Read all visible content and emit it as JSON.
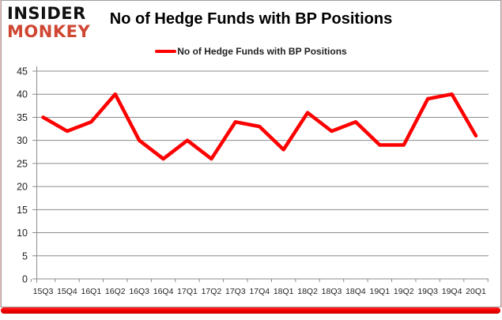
{
  "logo": {
    "line1": "INSIDER",
    "line2": "MONKEY"
  },
  "header": {
    "title": "No of Hedge Funds with BP Positions"
  },
  "legend": {
    "label": "No of Hedge Funds with BP Positions"
  },
  "colors": {
    "series_line": "#fe0000",
    "grid": "#8c8c8c",
    "axis_text": "#1f1f1f",
    "logo_black": "#111111",
    "logo_red": "#cf4632",
    "bottom_bar": "#f40000"
  },
  "chart_data": {
    "type": "line",
    "title": "No of Hedge Funds with BP Positions",
    "categories": [
      "15Q3",
      "15Q4",
      "16Q1",
      "16Q2",
      "16Q3",
      "16Q4",
      "17Q1",
      "17Q2",
      "17Q3",
      "17Q4",
      "18Q1",
      "18Q2",
      "18Q3",
      "18Q4",
      "19Q1",
      "19Q2",
      "19Q3",
      "19Q4",
      "20Q1"
    ],
    "series": [
      {
        "name": "No of Hedge Funds with BP Positions",
        "color": "#fe0000",
        "values": [
          35,
          32,
          34,
          40,
          30,
          26,
          30,
          26,
          34,
          33,
          28,
          36,
          32,
          34,
          29,
          29,
          39,
          40,
          31
        ]
      }
    ],
    "xlabel": "",
    "ylabel": "",
    "ylim": [
      0,
      45
    ],
    "ytick_step": 5,
    "grid": true,
    "legend_position": "top-center"
  }
}
